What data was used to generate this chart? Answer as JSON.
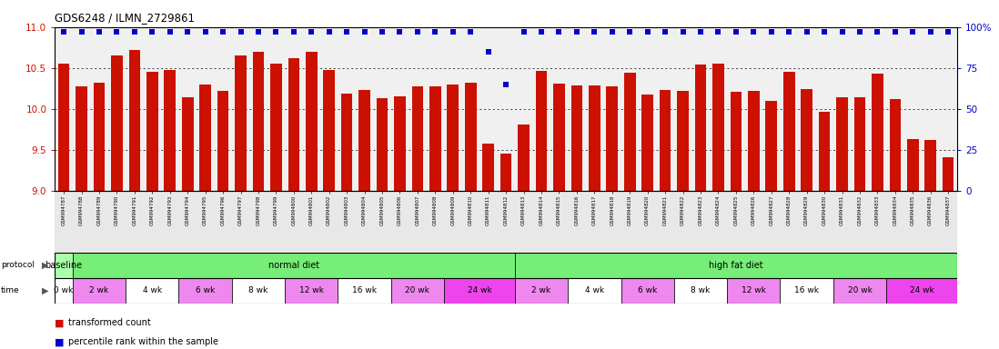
{
  "title": "GDS6248 / ILMN_2729861",
  "samples": [
    "GSM994787",
    "GSM994788",
    "GSM994789",
    "GSM994790",
    "GSM994791",
    "GSM994792",
    "GSM994793",
    "GSM994794",
    "GSM994795",
    "GSM994796",
    "GSM994797",
    "GSM994798",
    "GSM994799",
    "GSM994800",
    "GSM994801",
    "GSM994802",
    "GSM994803",
    "GSM994804",
    "GSM994805",
    "GSM994806",
    "GSM994807",
    "GSM994808",
    "GSM994809",
    "GSM994810",
    "GSM994811",
    "GSM994812",
    "GSM994813",
    "GSM994814",
    "GSM994815",
    "GSM994816",
    "GSM994817",
    "GSM994818",
    "GSM994819",
    "GSM994820",
    "GSM994821",
    "GSM994822",
    "GSM994823",
    "GSM994824",
    "GSM994825",
    "GSM994826",
    "GSM994827",
    "GSM994828",
    "GSM994829",
    "GSM994830",
    "GSM994831",
    "GSM994832",
    "GSM994833",
    "GSM994834",
    "GSM994835",
    "GSM994836",
    "GSM994837"
  ],
  "bar_values": [
    10.55,
    10.28,
    10.32,
    10.65,
    10.72,
    10.46,
    10.48,
    10.14,
    10.3,
    10.22,
    10.65,
    10.7,
    10.55,
    10.62,
    10.7,
    10.48,
    10.19,
    10.23,
    10.13,
    10.16,
    10.28,
    10.28,
    10.3,
    10.32,
    9.58,
    9.46,
    9.81,
    10.47,
    10.31,
    10.29,
    10.29,
    10.28,
    10.45,
    10.18,
    10.23,
    10.22,
    10.54,
    10.55,
    10.21,
    10.22,
    10.1,
    10.46,
    10.25,
    9.97,
    10.14,
    10.14,
    10.43,
    10.12,
    9.63,
    9.62,
    9.41
  ],
  "percentile_values": [
    97,
    97,
    97,
    97,
    97,
    97,
    97,
    97,
    97,
    97,
    97,
    97,
    97,
    97,
    97,
    97,
    97,
    97,
    97,
    97,
    97,
    97,
    97,
    97,
    85,
    65,
    97,
    97,
    97,
    97,
    97,
    97,
    97,
    97,
    97,
    97,
    97,
    97,
    97,
    97,
    97,
    97,
    97,
    97,
    97,
    97,
    97,
    97,
    97,
    97,
    97
  ],
  "bar_color": "#cc1100",
  "percentile_color": "#0000cc",
  "ylim": [
    9.0,
    11.0
  ],
  "yticks": [
    9.0,
    9.5,
    10.0,
    10.5,
    11.0
  ],
  "right_ylim": [
    0,
    100
  ],
  "right_yticks": [
    0,
    25,
    50,
    75,
    100
  ],
  "background_color": "#ffffff",
  "plot_bg_color": "#f0f0f0",
  "xticklabel_bg": "#e8e8e8",
  "proto_spans": [
    {
      "label": "baseline",
      "start": 0,
      "end": 1,
      "color": "#aaffaa"
    },
    {
      "label": "normal diet",
      "start": 1,
      "end": 26,
      "color": "#77ee77"
    },
    {
      "label": "high fat diet",
      "start": 26,
      "end": 51,
      "color": "#77ee77"
    }
  ],
  "time_spans": [
    {
      "label": "0 wk",
      "start": 0,
      "end": 1,
      "color": "#ffffff"
    },
    {
      "label": "2 wk",
      "start": 1,
      "end": 4,
      "color": "#ee88ee"
    },
    {
      "label": "4 wk",
      "start": 4,
      "end": 7,
      "color": "#ffffff"
    },
    {
      "label": "6 wk",
      "start": 7,
      "end": 10,
      "color": "#ee88ee"
    },
    {
      "label": "8 wk",
      "start": 10,
      "end": 13,
      "color": "#ffffff"
    },
    {
      "label": "12 wk",
      "start": 13,
      "end": 16,
      "color": "#ee88ee"
    },
    {
      "label": "16 wk",
      "start": 16,
      "end": 19,
      "color": "#ffffff"
    },
    {
      "label": "20 wk",
      "start": 19,
      "end": 22,
      "color": "#ee88ee"
    },
    {
      "label": "24 wk",
      "start": 22,
      "end": 26,
      "color": "#ee44ee"
    },
    {
      "label": "2 wk",
      "start": 26,
      "end": 29,
      "color": "#ee88ee"
    },
    {
      "label": "4 wk",
      "start": 29,
      "end": 32,
      "color": "#ffffff"
    },
    {
      "label": "6 wk",
      "start": 32,
      "end": 35,
      "color": "#ee88ee"
    },
    {
      "label": "8 wk",
      "start": 35,
      "end": 38,
      "color": "#ffffff"
    },
    {
      "label": "12 wk",
      "start": 38,
      "end": 41,
      "color": "#ee88ee"
    },
    {
      "label": "16 wk",
      "start": 41,
      "end": 44,
      "color": "#ffffff"
    },
    {
      "label": "20 wk",
      "start": 44,
      "end": 47,
      "color": "#ee88ee"
    },
    {
      "label": "24 wk",
      "start": 47,
      "end": 51,
      "color": "#ee44ee"
    }
  ]
}
